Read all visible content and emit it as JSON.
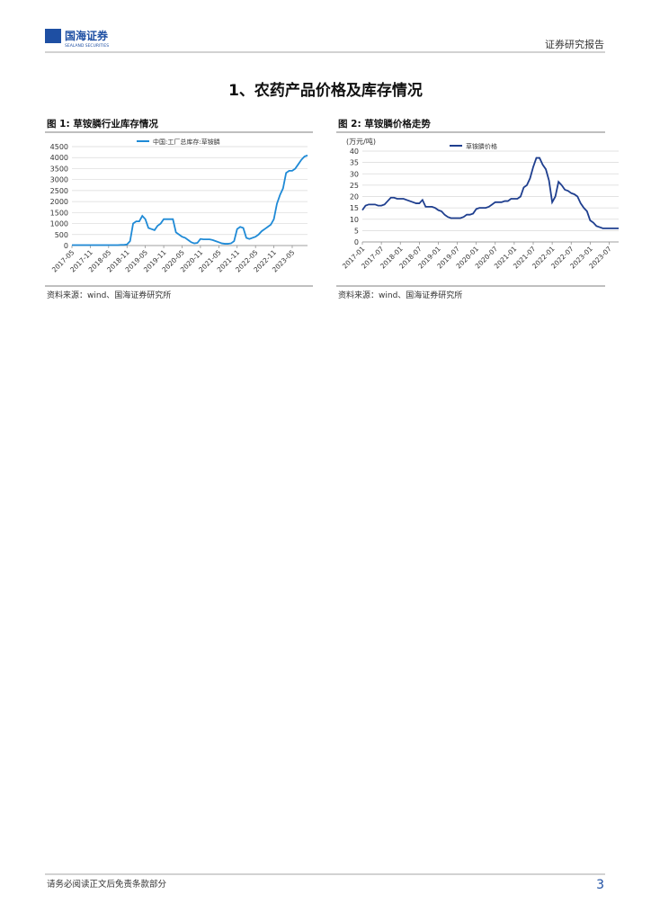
{
  "header": {
    "logo": "国海证券",
    "logo_en": "SEALAND SECURITIES",
    "report_type": "证券研究报告"
  },
  "section_title": "1、农药产品价格及库存情况",
  "figures": [
    {
      "caption": "图 1:  草铵膦行业库存情况",
      "source": "资料来源：wind、国海证券研究所"
    },
    {
      "caption": "图 2:  草铵膦价格走势",
      "source": "资料来源：wind、国海证券研究所"
    }
  ],
  "chart_data": [
    {
      "type": "line",
      "x": [
        "2017-05",
        null,
        null,
        null,
        null,
        null,
        "2017-11",
        null,
        null,
        null,
        null,
        null,
        "2018-05",
        null,
        null,
        null,
        null,
        null,
        "2018-11",
        null,
        null,
        null,
        null,
        null,
        "2019-05",
        null,
        null,
        null,
        null,
        null,
        "2019-11",
        null,
        null,
        null,
        null,
        null,
        "2020-05",
        null,
        null,
        null,
        null,
        null,
        "2020-11",
        null,
        null,
        null,
        null,
        null,
        "2021-05",
        null,
        null,
        null,
        null,
        null,
        "2021-11",
        null,
        null,
        null,
        null,
        null,
        "2022-05",
        null,
        null,
        null,
        null,
        null,
        "2022-11",
        null,
        null,
        null,
        null,
        null,
        "2023-05",
        null,
        null,
        null,
        null,
        null
      ],
      "series": [
        {
          "name": "中国:工厂总库存:草铵膦",
          "color": "#1f8ad6",
          "values": [
            20,
            20,
            20,
            20,
            20,
            20,
            20,
            20,
            20,
            20,
            20,
            20,
            20,
            20,
            20,
            20,
            30,
            30,
            50,
            200,
            1000,
            1100,
            1100,
            1350,
            1200,
            800,
            750,
            700,
            900,
            1000,
            1200,
            1200,
            1200,
            1200,
            600,
            500,
            400,
            350,
            250,
            150,
            100,
            120,
            300,
            280,
            280,
            280,
            250,
            200,
            150,
            100,
            80,
            80,
            100,
            200,
            750,
            850,
            800,
            350,
            300,
            350,
            400,
            500,
            650,
            750,
            850,
            950,
            1200,
            1900,
            2300,
            2600,
            3300,
            3400,
            3400,
            3500,
            3700,
            3900,
            4050,
            4100
          ]
        }
      ],
      "ylim": [
        0,
        4500
      ],
      "yticks": [
        0,
        500,
        1000,
        1500,
        2000,
        2500,
        3000,
        3500,
        4000,
        4500
      ],
      "grid": true
    },
    {
      "type": "line",
      "y_label": "(万元/吨)",
      "x": [
        "2017-01",
        null,
        null,
        null,
        null,
        null,
        "2017-07",
        null,
        null,
        null,
        null,
        null,
        "2018-01",
        null,
        null,
        null,
        null,
        null,
        "2018-07",
        null,
        null,
        null,
        null,
        null,
        "2019-01",
        null,
        null,
        null,
        null,
        null,
        "2019-07",
        null,
        null,
        null,
        null,
        null,
        "2020-01",
        null,
        null,
        null,
        null,
        null,
        "2020-07",
        null,
        null,
        null,
        null,
        null,
        "2021-01",
        null,
        null,
        null,
        null,
        null,
        "2021-07",
        null,
        null,
        null,
        null,
        null,
        "2022-01",
        null,
        null,
        null,
        null,
        null,
        "2022-07",
        null,
        null,
        null,
        null,
        null,
        "2023-01",
        null,
        null,
        null,
        null,
        null,
        "2023-07",
        null,
        null,
        null
      ],
      "series": [
        {
          "name": "草铵膦价格",
          "color": "#1f3f8f",
          "values": [
            14,
            16,
            16.5,
            16.5,
            16.5,
            16,
            16,
            16.5,
            18,
            19.5,
            19.5,
            19,
            19,
            19,
            18.5,
            18,
            17.5,
            17,
            17,
            18.5,
            15.5,
            15.5,
            15.5,
            15,
            14,
            13.5,
            12,
            11,
            10.5,
            10.5,
            10.5,
            10.5,
            11,
            12,
            12,
            12.5,
            14.5,
            15,
            15,
            15,
            15.5,
            16.5,
            17.5,
            17.5,
            17.5,
            18,
            18,
            19,
            19,
            19,
            20,
            24,
            25,
            28,
            33,
            37,
            37,
            34,
            32,
            27,
            17.5,
            20,
            26.5,
            25,
            23,
            22.5,
            21.5,
            21,
            20,
            17,
            15,
            13.5,
            9.5,
            8.5,
            7,
            6.5,
            6,
            6,
            6,
            6,
            6,
            6
          ]
        }
      ],
      "ylim": [
        0,
        40
      ],
      "yticks": [
        0,
        5,
        10,
        15,
        20,
        25,
        30,
        35,
        40
      ],
      "grid": true
    }
  ],
  "footer": {
    "disclaimer": "请务必阅读正文后免责条款部分",
    "page": "3"
  }
}
